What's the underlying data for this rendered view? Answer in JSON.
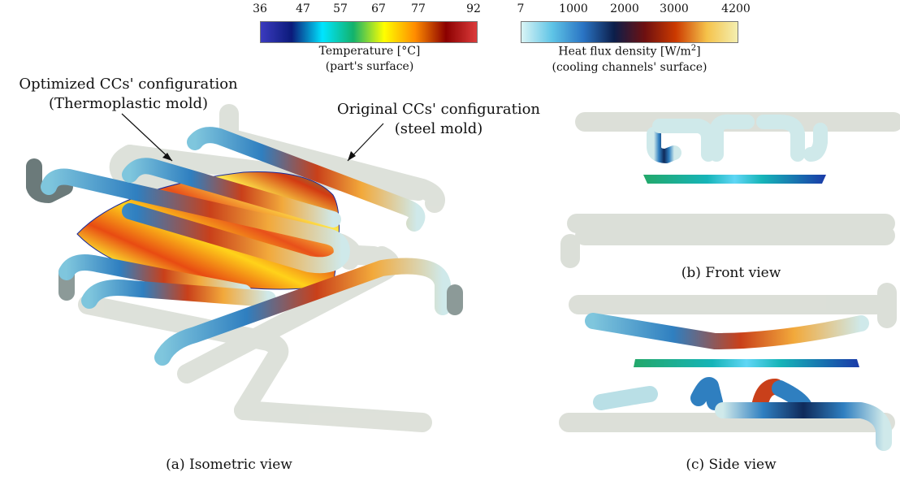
{
  "colorbars": {
    "temperature": {
      "ticks": [
        "36",
        "47",
        "57",
        "67",
        "77",
        "92"
      ],
      "title_line1": "Temperature [°C]",
      "title_line2": "(part's surface)",
      "colors": [
        "#3b3bbf",
        "#0b1a7a",
        "#00e5ff",
        "#13b26b",
        "#ffff00",
        "#ff8c00",
        "#8b0000",
        "#dc3b3b"
      ]
    },
    "heat_flux": {
      "ticks": [
        "7",
        "1000",
        "2000",
        "3000",
        "4200"
      ],
      "title_line1": "Heat flux density [W/m",
      "title_sup": "2",
      "title_line1_end": "]",
      "title_line2": "(cooling channels' surface)",
      "colors": [
        "#d9f4f5",
        "#5ec4e6",
        "#2a74c4",
        "#0c1e4a",
        "#6e1010",
        "#cc3a00",
        "#f5c24a",
        "#f4efb0"
      ]
    }
  },
  "annotations": {
    "optimized_line1": "Optimized CCs' configuration",
    "optimized_line2": "(Thermoplastic mold)",
    "original_line1": "Original CCs' configuration",
    "original_line2": "(steel mold)"
  },
  "captions": {
    "a": "(a) Isometric view",
    "b": "(b) Front view",
    "c": "(c) Side view"
  },
  "colors": {
    "ghost_channel": "#d8dcd4",
    "ghost_channel_edge": "#b7bbb2",
    "channel_base": "#cfe9ea",
    "channel_hot": "#c9401a",
    "channel_cold": "#2f7fc0"
  }
}
